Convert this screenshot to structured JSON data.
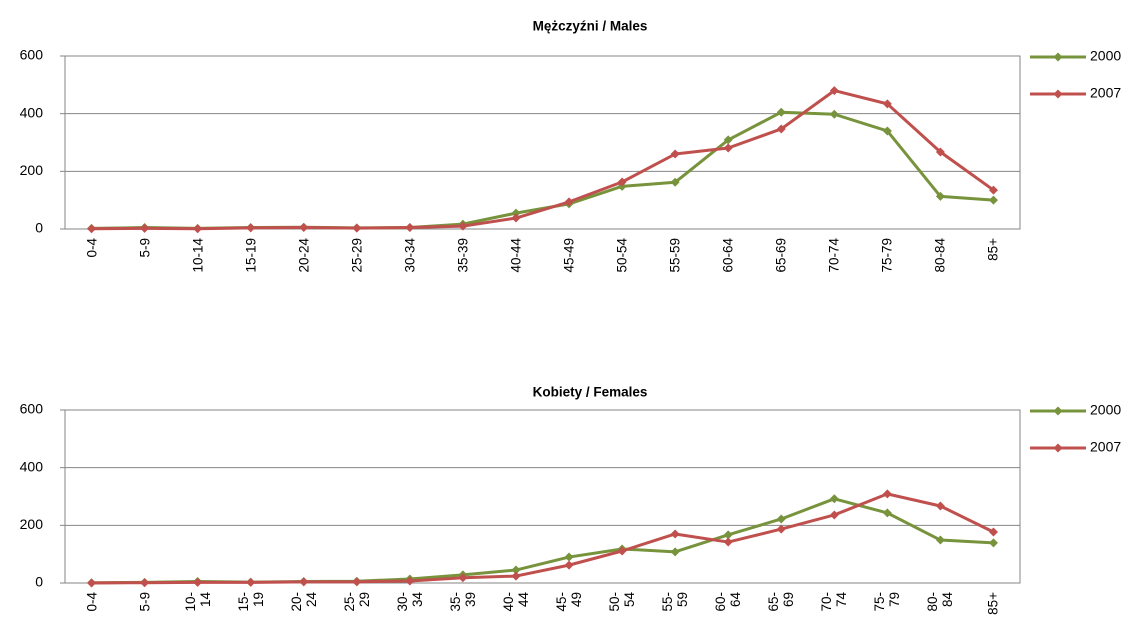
{
  "chart_data": [
    {
      "type": "line",
      "title": "Mężczyźni / Males",
      "categories": [
        "0-4",
        "5-9",
        "10-14",
        "15-19",
        "20-24",
        "25-29",
        "30-34",
        "35-39",
        "40-44",
        "45-49",
        "50-54",
        "55-59",
        "60-64",
        "65-69",
        "70-74",
        "75-79",
        "80-84",
        "85+"
      ],
      "series": [
        {
          "name": "2000",
          "color": "#77933c",
          "values": [
            2,
            5,
            2,
            5,
            6,
            4,
            5,
            17,
            55,
            87,
            148,
            162,
            309,
            405,
            398,
            340,
            113,
            100
          ]
        },
        {
          "name": "2007",
          "color": "#c0504d",
          "values": [
            1,
            2,
            1,
            4,
            5,
            3,
            5,
            10,
            38,
            94,
            163,
            260,
            281,
            347,
            480,
            434,
            267,
            135
          ]
        }
      ],
      "ylim": [
        0,
        600
      ],
      "yticks": [
        0,
        200,
        400,
        600
      ],
      "grid": true,
      "legend": "right"
    },
    {
      "type": "line",
      "title": "Kobiety / Females",
      "categories": [
        "0-4",
        "5-9",
        "10-14",
        "15-19",
        "20-24",
        "25-29",
        "30-34",
        "35-39",
        "40-44",
        "45-49",
        "50-54",
        "55-59",
        "60-64",
        "65-69",
        "70-74",
        "75-79",
        "80-84",
        "85+"
      ],
      "series": [
        {
          "name": "2000",
          "color": "#77933c",
          "values": [
            1,
            2,
            5,
            3,
            5,
            6,
            14,
            28,
            45,
            90,
            118,
            108,
            167,
            222,
            292,
            243,
            149,
            139
          ]
        },
        {
          "name": "2007",
          "color": "#c0504d",
          "values": [
            0,
            1,
            2,
            2,
            4,
            4,
            7,
            18,
            24,
            62,
            111,
            170,
            142,
            187,
            236,
            309,
            267,
            177
          ]
        }
      ],
      "ylim": [
        0,
        600
      ],
      "yticks": [
        0,
        200,
        400,
        600
      ],
      "grid": true,
      "legend": "right"
    }
  ]
}
